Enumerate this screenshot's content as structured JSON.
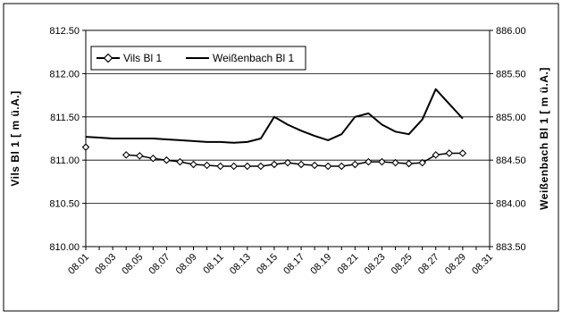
{
  "chart_data": {
    "type": "line",
    "title": "",
    "xlabel": "",
    "ylabel": "Vils Bl 1 [ m ü.A.]",
    "ylabel_right": "Weißenbach Bl 1 [ m ü.A.]",
    "x_ticks": [
      "08.01",
      "08.03",
      "08.05",
      "08.07",
      "08.09",
      "08.11",
      "08.13",
      "08.15",
      "08.17",
      "08.19",
      "08.21",
      "08.23",
      "08.25",
      "08.27",
      "08.29",
      "08.31"
    ],
    "y_left_ticks": [
      "810.00",
      "810.50",
      "811.00",
      "811.50",
      "812.00",
      "812.50"
    ],
    "y_right_ticks": [
      "883.50",
      "884.00",
      "884.50",
      "885.00",
      "885.50",
      "886.00"
    ],
    "ylim": [
      810.0,
      812.5
    ],
    "ylim_right": [
      883.5,
      886.0
    ],
    "xlim": [
      "08.01",
      "08.31"
    ],
    "grid": true,
    "legend_placement": "top-left",
    "series": [
      {
        "name": "Vils Bl 1",
        "axis": "left",
        "marker": "diamond",
        "color": "#000000",
        "x": [
          "08.01",
          "08.04",
          "08.05",
          "08.06",
          "08.07",
          "08.08",
          "08.09",
          "08.10",
          "08.11",
          "08.12",
          "08.13",
          "08.14",
          "08.15",
          "08.16",
          "08.17",
          "08.18",
          "08.19",
          "08.20",
          "08.21",
          "08.22",
          "08.23",
          "08.24",
          "08.25",
          "08.26",
          "08.27",
          "08.28",
          "08.29"
        ],
        "values": [
          811.15,
          811.06,
          811.05,
          811.02,
          811.0,
          810.98,
          810.95,
          810.94,
          810.93,
          810.93,
          810.93,
          810.93,
          810.95,
          810.97,
          810.95,
          810.94,
          810.93,
          810.93,
          810.95,
          810.98,
          810.98,
          810.97,
          810.96,
          810.97,
          811.06,
          811.08,
          811.08
        ]
      },
      {
        "name": "Weißenbach Bl 1",
        "axis": "right",
        "marker": "none",
        "color": "#000000",
        "x": [
          "08.01",
          "08.02",
          "08.03",
          "08.04",
          "08.05",
          "08.06",
          "08.07",
          "08.08",
          "08.09",
          "08.10",
          "08.11",
          "08.12",
          "08.13",
          "08.14",
          "08.15",
          "08.16",
          "08.17",
          "08.18",
          "08.19",
          "08.20",
          "08.21",
          "08.22",
          "08.23",
          "08.24",
          "08.25",
          "08.26",
          "08.27",
          "08.28",
          "08.29"
        ],
        "values": [
          884.77,
          884.76,
          884.75,
          884.75,
          884.75,
          884.75,
          884.74,
          884.73,
          884.72,
          884.71,
          884.71,
          884.7,
          884.71,
          884.75,
          885.0,
          884.91,
          884.84,
          884.78,
          884.73,
          884.8,
          885.0,
          885.04,
          884.91,
          884.83,
          884.8,
          884.97,
          885.32,
          885.15,
          884.98
        ]
      }
    ]
  }
}
